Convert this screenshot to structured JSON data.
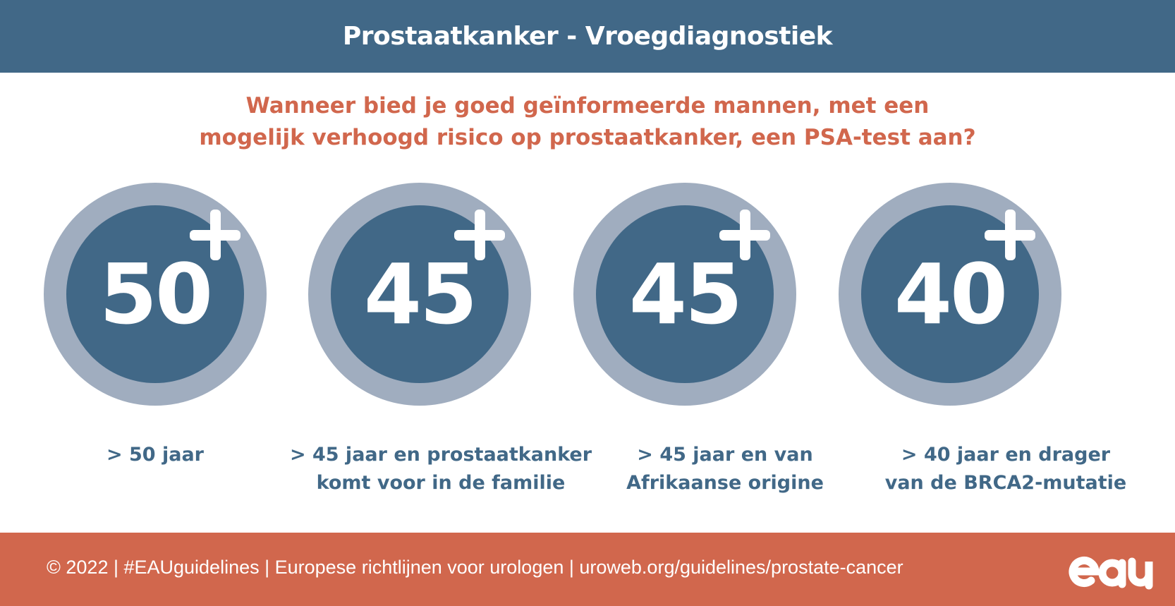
{
  "header": {
    "title": "Prostaatkanker - Vroegdiagnostiek"
  },
  "question": {
    "line1": "Wanneer bied je goed geïnformeerde mannen, met een",
    "line2": "mogelijk verhoogd risico op prostaatkanker, een PSA-test aan?"
  },
  "groups": [
    {
      "age": "50",
      "caption_line1": "> 50 jaar",
      "caption_line2": ""
    },
    {
      "age": "45",
      "caption_line1": "> 45 jaar en prostaatkanker",
      "caption_line2": "komt voor in de familie"
    },
    {
      "age": "45",
      "caption_line1": "> 45 jaar en van",
      "caption_line2": "Afrikaanse origine"
    },
    {
      "age": "40",
      "caption_line1": "> 40 jaar en drager",
      "caption_line2": "van de BRCA2-mutatie"
    }
  ],
  "footer": {
    "credit": "© 2022 | #EAUguidelines | Europese richtlijnen voor urologen | uroweb.org/guidelines/prostate-cancer",
    "logo_text": "eau"
  },
  "colors": {
    "header_bg": "#416887",
    "accent": "#d1674d",
    "circle_outer": "#a0adbf",
    "circle_inner": "#416887"
  },
  "icons": [
    "plus-icon",
    "eau-logo"
  ]
}
